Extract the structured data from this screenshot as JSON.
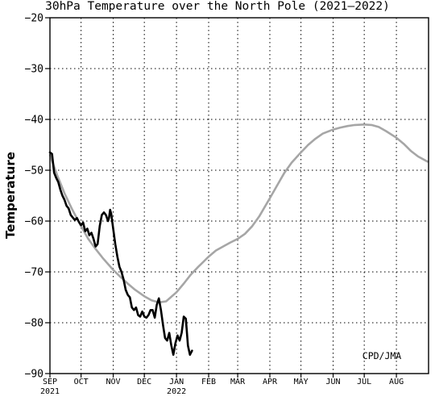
{
  "chart_data": {
    "type": "line",
    "title": "30hPa Temperature over the North Pole (2021–2022)",
    "xlabel": "",
    "ylabel": "Temperature",
    "ylim": [
      -90,
      -20
    ],
    "yticks": [
      -90,
      -80,
      -70,
      -60,
      -50,
      -40,
      -30,
      -20
    ],
    "xlim": [
      "2021-09-01",
      "2022-08-31"
    ],
    "xticks": [
      {
        "label": "SEP",
        "date": "2021-09-01",
        "year_label": "2021"
      },
      {
        "label": "OCT",
        "date": "2021-10-01"
      },
      {
        "label": "NOV",
        "date": "2021-11-01"
      },
      {
        "label": "DEC",
        "date": "2021-12-01"
      },
      {
        "label": "JAN",
        "date": "2022-01-01",
        "year_label": "2022"
      },
      {
        "label": "FEB",
        "date": "2022-02-01"
      },
      {
        "label": "MAR",
        "date": "2022-03-01"
      },
      {
        "label": "APR",
        "date": "2022-04-01"
      },
      {
        "label": "MAY",
        "date": "2022-05-01"
      },
      {
        "label": "JUN",
        "date": "2022-06-01"
      },
      {
        "label": "JUL",
        "date": "2022-07-01"
      },
      {
        "label": "AUG",
        "date": "2022-08-01"
      }
    ],
    "grid": true,
    "annotation": "CPD/JMA",
    "series": [
      {
        "color": "#a6a6a6",
        "points": [
          [
            "2021-09-01",
            -47.0
          ],
          [
            "2021-09-08",
            -51.0
          ],
          [
            "2021-09-15",
            -54.5
          ],
          [
            "2021-09-22",
            -57.5
          ],
          [
            "2021-10-01",
            -61.0
          ],
          [
            "2021-10-08",
            -63.5
          ],
          [
            "2021-10-15",
            -65.5
          ],
          [
            "2021-10-22",
            -67.3
          ],
          [
            "2021-11-01",
            -69.6
          ],
          [
            "2021-11-08",
            -71.0
          ],
          [
            "2021-11-15",
            -72.3
          ],
          [
            "2021-11-22",
            -73.5
          ],
          [
            "2021-12-01",
            -74.8
          ],
          [
            "2021-12-08",
            -75.6
          ],
          [
            "2021-12-15",
            -76.0
          ],
          [
            "2021-12-22",
            -75.8
          ],
          [
            "2022-01-01",
            -74.0
          ],
          [
            "2022-01-08",
            -72.3
          ],
          [
            "2022-01-15",
            -70.5
          ],
          [
            "2022-01-22",
            -69.0
          ],
          [
            "2022-02-01",
            -67.0
          ],
          [
            "2022-02-08",
            -65.8
          ],
          [
            "2022-02-15",
            -65.0
          ],
          [
            "2022-02-22",
            -64.2
          ],
          [
            "2022-03-01",
            -63.5
          ],
          [
            "2022-03-08",
            -62.5
          ],
          [
            "2022-03-15",
            -61.0
          ],
          [
            "2022-03-22",
            -59.0
          ],
          [
            "2022-04-01",
            -55.5
          ],
          [
            "2022-04-08",
            -53.0
          ],
          [
            "2022-04-15",
            -50.5
          ],
          [
            "2022-04-22",
            -48.5
          ],
          [
            "2022-05-01",
            -46.5
          ],
          [
            "2022-05-08",
            -45.0
          ],
          [
            "2022-05-15",
            -43.8
          ],
          [
            "2022-05-22",
            -42.8
          ],
          [
            "2022-06-01",
            -42.0
          ],
          [
            "2022-06-08",
            -41.6
          ],
          [
            "2022-06-15",
            -41.3
          ],
          [
            "2022-06-22",
            -41.1
          ],
          [
            "2022-07-01",
            -41.0
          ],
          [
            "2022-07-08",
            -41.1
          ],
          [
            "2022-07-15",
            -41.5
          ],
          [
            "2022-07-22",
            -42.3
          ],
          [
            "2022-08-01",
            -43.6
          ],
          [
            "2022-08-08",
            -44.8
          ],
          [
            "2022-08-15",
            -46.2
          ],
          [
            "2022-08-22",
            -47.3
          ],
          [
            "2022-08-31",
            -48.3
          ]
        ]
      },
      {
        "color": "#000000",
        "points": [
          [
            "2021-09-01",
            -46.5
          ],
          [
            "2021-09-03",
            -46.8
          ],
          [
            "2021-09-05",
            -50.5
          ],
          [
            "2021-09-07",
            -51.5
          ],
          [
            "2021-09-09",
            -52.3
          ],
          [
            "2021-09-11",
            -53.8
          ],
          [
            "2021-09-13",
            -55.0
          ],
          [
            "2021-09-15",
            -55.8
          ],
          [
            "2021-09-17",
            -57.0
          ],
          [
            "2021-09-19",
            -57.5
          ],
          [
            "2021-09-21",
            -58.8
          ],
          [
            "2021-09-23",
            -59.3
          ],
          [
            "2021-09-25",
            -59.8
          ],
          [
            "2021-09-27",
            -59.4
          ],
          [
            "2021-09-29",
            -60.2
          ],
          [
            "2021-10-01",
            -60.8
          ],
          [
            "2021-10-03",
            -60.3
          ],
          [
            "2021-10-05",
            -62.0
          ],
          [
            "2021-10-07",
            -61.5
          ],
          [
            "2021-10-09",
            -62.8
          ],
          [
            "2021-10-11",
            -62.3
          ],
          [
            "2021-10-13",
            -63.5
          ],
          [
            "2021-10-15",
            -65.0
          ],
          [
            "2021-10-17",
            -64.5
          ],
          [
            "2021-10-19",
            -61.0
          ],
          [
            "2021-10-21",
            -58.8
          ],
          [
            "2021-10-23",
            -58.3
          ],
          [
            "2021-10-25",
            -58.8
          ],
          [
            "2021-10-27",
            -60.0
          ],
          [
            "2021-10-28",
            -59.3
          ],
          [
            "2021-10-29",
            -57.8
          ],
          [
            "2021-10-30",
            -58.5
          ],
          [
            "2021-11-01",
            -61.5
          ],
          [
            "2021-11-03",
            -64.5
          ],
          [
            "2021-11-05",
            -67.0
          ],
          [
            "2021-11-07",
            -69.0
          ],
          [
            "2021-11-09",
            -70.0
          ],
          [
            "2021-11-11",
            -71.5
          ],
          [
            "2021-11-13",
            -73.5
          ],
          [
            "2021-11-15",
            -74.5
          ],
          [
            "2021-11-17",
            -75.0
          ],
          [
            "2021-11-19",
            -77.0
          ],
          [
            "2021-11-21",
            -77.5
          ],
          [
            "2021-11-23",
            -77.0
          ],
          [
            "2021-11-25",
            -78.5
          ],
          [
            "2021-11-27",
            -78.8
          ],
          [
            "2021-11-29",
            -77.8
          ],
          [
            "2021-12-01",
            -78.8
          ],
          [
            "2021-12-03",
            -79.0
          ],
          [
            "2021-12-05",
            -78.5
          ],
          [
            "2021-12-07",
            -77.5
          ],
          [
            "2021-12-09",
            -77.5
          ],
          [
            "2021-12-11",
            -79.0
          ],
          [
            "2021-12-13",
            -76.5
          ],
          [
            "2021-12-15",
            -75.2
          ],
          [
            "2021-12-17",
            -77.5
          ],
          [
            "2021-12-19",
            -80.5
          ],
          [
            "2021-12-21",
            -83.0
          ],
          [
            "2021-12-23",
            -83.5
          ],
          [
            "2021-12-25",
            -82.0
          ],
          [
            "2021-12-27",
            -84.5
          ],
          [
            "2021-12-29",
            -86.3
          ],
          [
            "2021-12-31",
            -84.0
          ],
          [
            "2022-01-02",
            -82.5
          ],
          [
            "2022-01-04",
            -83.5
          ],
          [
            "2022-01-06",
            -82.0
          ],
          [
            "2022-01-08",
            -78.8
          ],
          [
            "2022-01-10",
            -79.2
          ],
          [
            "2022-01-12",
            -84.5
          ],
          [
            "2022-01-14",
            -86.3
          ],
          [
            "2022-01-16",
            -85.5
          ]
        ]
      }
    ]
  }
}
